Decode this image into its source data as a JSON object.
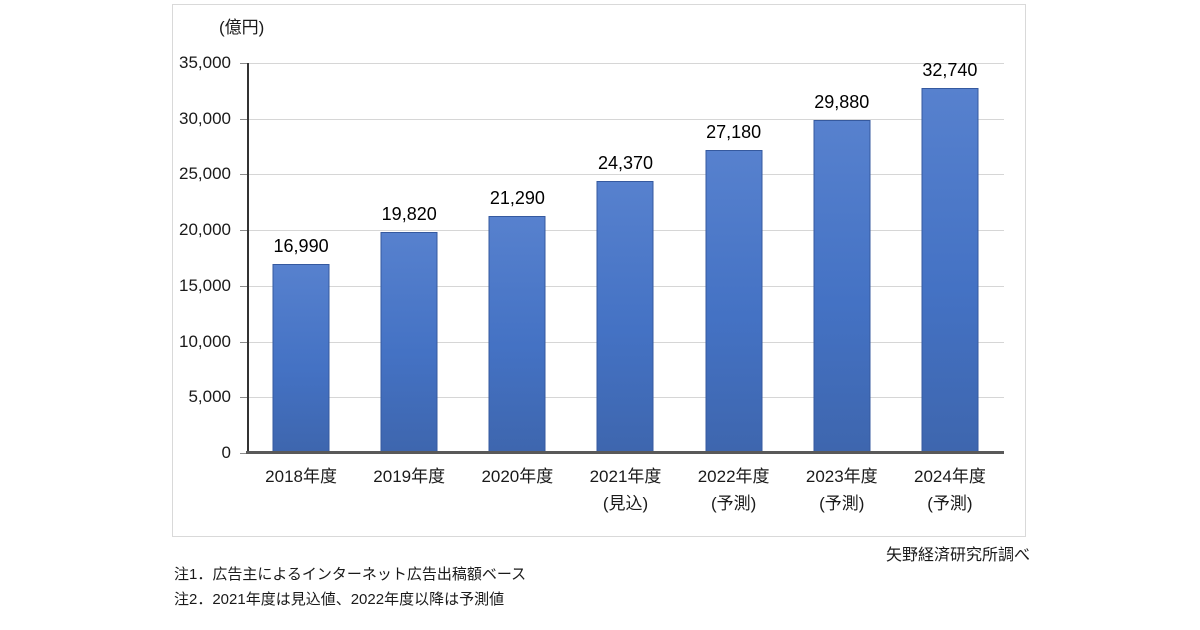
{
  "page": {
    "background": "#ffffff"
  },
  "chart": {
    "unit_label": "(億円)",
    "source": "矢野経済研究所調べ",
    "notes": [
      "注1．広告主によるインターネット広告出稿額ベース",
      "注2．2021年度は見込値、2022年度以降は予測値"
    ]
  },
  "chart_data": {
    "type": "bar",
    "title": "",
    "ylabel": "(億円)",
    "xlabel": "",
    "categories": [
      "2018年度",
      "2019年度",
      "2020年度",
      "2021年度",
      "2022年度",
      "2023年度",
      "2024年度"
    ],
    "category_sublabels": [
      "",
      "",
      "",
      "(見込)",
      "(予測)",
      "(予測)",
      "(予測)"
    ],
    "values": [
      16990,
      19820,
      21290,
      24370,
      27180,
      29880,
      32740
    ],
    "value_labels": [
      "16,990",
      "19,820",
      "21,290",
      "24,370",
      "27,180",
      "29,880",
      "32,740"
    ],
    "ylim": [
      0,
      35000
    ],
    "ytick_step": 5000,
    "ytick_labels": [
      "0",
      "5,000",
      "10,000",
      "15,000",
      "20,000",
      "25,000",
      "30,000",
      "35,000"
    ],
    "grid": true,
    "legend": false,
    "bar_color": "#4472c4",
    "bar_border_color": "#35599f",
    "grid_color": "#d6d6d6",
    "axis_color": "#333333"
  }
}
